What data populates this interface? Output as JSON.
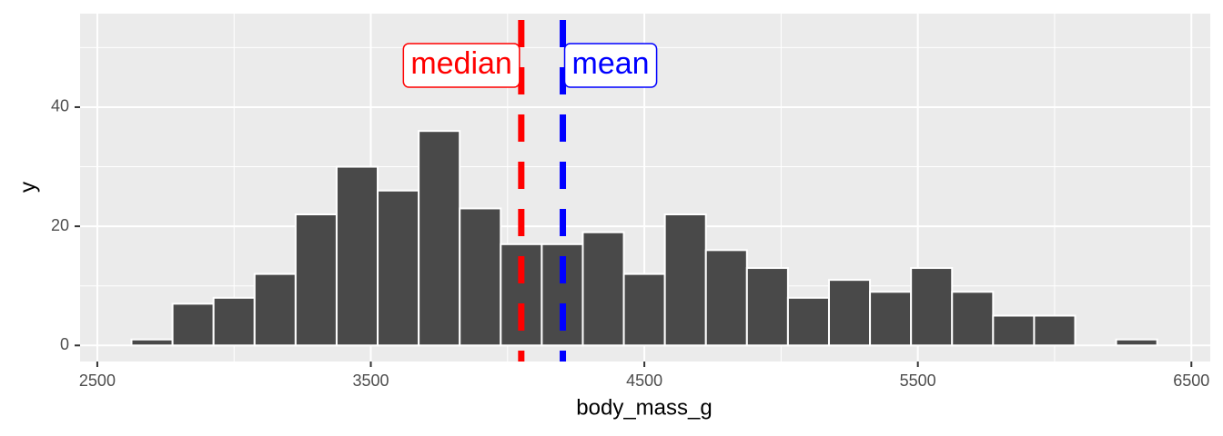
{
  "chart_data": {
    "type": "histogram",
    "x_label": "body_mass_g",
    "y_label": "y",
    "bins": [
      2625,
      2775,
      2925,
      3075,
      3225,
      3375,
      3525,
      3675,
      3825,
      3975,
      4125,
      4275,
      4425,
      4575,
      4725,
      4875,
      5025,
      5175,
      5325,
      5475,
      5625,
      5775,
      5925,
      6075,
      6225,
      6375
    ],
    "values": [
      1,
      7,
      8,
      12,
      22,
      30,
      26,
      36,
      23,
      17,
      17,
      19,
      12,
      22,
      16,
      13,
      8,
      11,
      9,
      13,
      9,
      5,
      5,
      0,
      1
    ],
    "color": "#494949",
    "xlim": [
      2437,
      6569
    ],
    "xticks": [
      2500,
      3500,
      4500,
      5500,
      6500
    ],
    "ylim": [
      -2.7,
      55.7
    ],
    "yticks": [
      0,
      20,
      40
    ],
    "grid": true,
    "reference_lines": [
      {
        "label": "median",
        "value": 4050,
        "color": "#ff0000",
        "label_side": "left"
      },
      {
        "label": "mean",
        "value": 4202,
        "color": "#0000ff",
        "label_side": "right"
      }
    ]
  }
}
